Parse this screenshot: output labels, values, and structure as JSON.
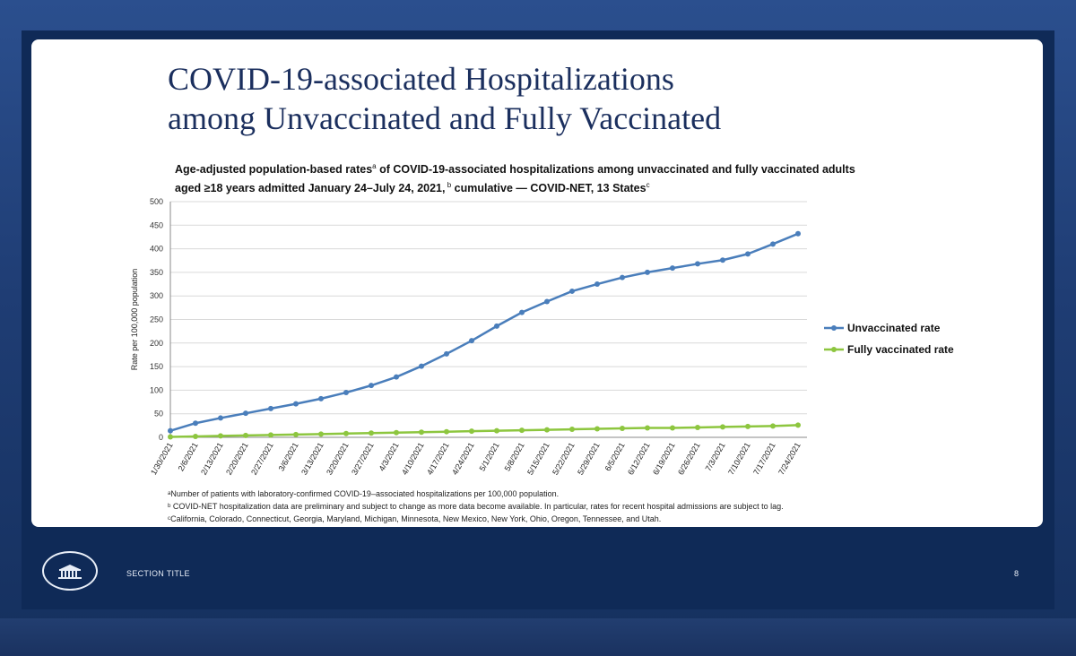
{
  "slide": {
    "title_line1": "COVID-19-associated Hospitalizations",
    "title_line2": "among Unvaccinated and Fully Vaccinated",
    "subtitle_a": "Age-adjusted population-based rates",
    "subtitle_sup_a": "a",
    "subtitle_b": " of COVID-19-associated hospitalizations among unvaccinated and fully vaccinated adults aged ≥18 years admitted January 24–July 24, 2021,",
    "subtitle_sup_b": " b",
    "subtitle_c": " cumulative — COVID-NET, 13 States",
    "subtitle_sup_c": "c",
    "footnotes": [
      "ᵃNumber of patients with laboratory-confirmed COVID-19–associated hospitalizations per 100,000 population.",
      "ᵇ COVID-NET hospitalization data are preliminary and subject to change as more data become available. In particular, rates for recent hospital admissions are subject to lag.",
      "ᶜCalifornia, Colorado, Connecticut, Georgia, Maryland, Michigan, Minnesota, New Mexico, New York, Ohio, Oregon, Tennessee, and Utah."
    ]
  },
  "footer": {
    "section_title": "SECTION TITLE",
    "page_number": "8"
  },
  "colors": {
    "unvaccinated": "#4a7ebb",
    "vaccinated": "#8dc63f",
    "title": "#1b2f5e"
  },
  "chart_data": {
    "type": "line",
    "ylabel": "Rate per 100,000 population",
    "xlabel": "",
    "ylim": [
      0,
      500
    ],
    "yticks": [
      0,
      50,
      100,
      150,
      200,
      250,
      300,
      350,
      400,
      450,
      500
    ],
    "grid": true,
    "legend_position": "right",
    "categories": [
      "1/30/2021",
      "2/6/2021",
      "2/13/2021",
      "2/20/2021",
      "2/27/2021",
      "3/6/2021",
      "3/13/2021",
      "3/20/2021",
      "3/27/2021",
      "4/3/2021",
      "4/10/2021",
      "4/17/2021",
      "4/24/2021",
      "5/1/2021",
      "5/8/2021",
      "5/15/2021",
      "5/22/2021",
      "5/29/2021",
      "6/5/2021",
      "6/12/2021",
      "6/19/2021",
      "6/26/2021",
      "7/3/2021",
      "7/10/2021",
      "7/17/2021",
      "7/24/2021"
    ],
    "series": [
      {
        "name": "Unvaccinated rate",
        "values": [
          14,
          30,
          41,
          51,
          61,
          71,
          82,
          95,
          110,
          128,
          151,
          177,
          205,
          236,
          265,
          288,
          310,
          325,
          339,
          350,
          359,
          368,
          376,
          389,
          410,
          432
        ]
      },
      {
        "name": "Fully vaccinated rate",
        "values": [
          1,
          2,
          3,
          4,
          5,
          6,
          7,
          8,
          9,
          10,
          11,
          12,
          13,
          14,
          15,
          16,
          17,
          18,
          19,
          20,
          20,
          21,
          22,
          23,
          24,
          26
        ]
      }
    ]
  }
}
